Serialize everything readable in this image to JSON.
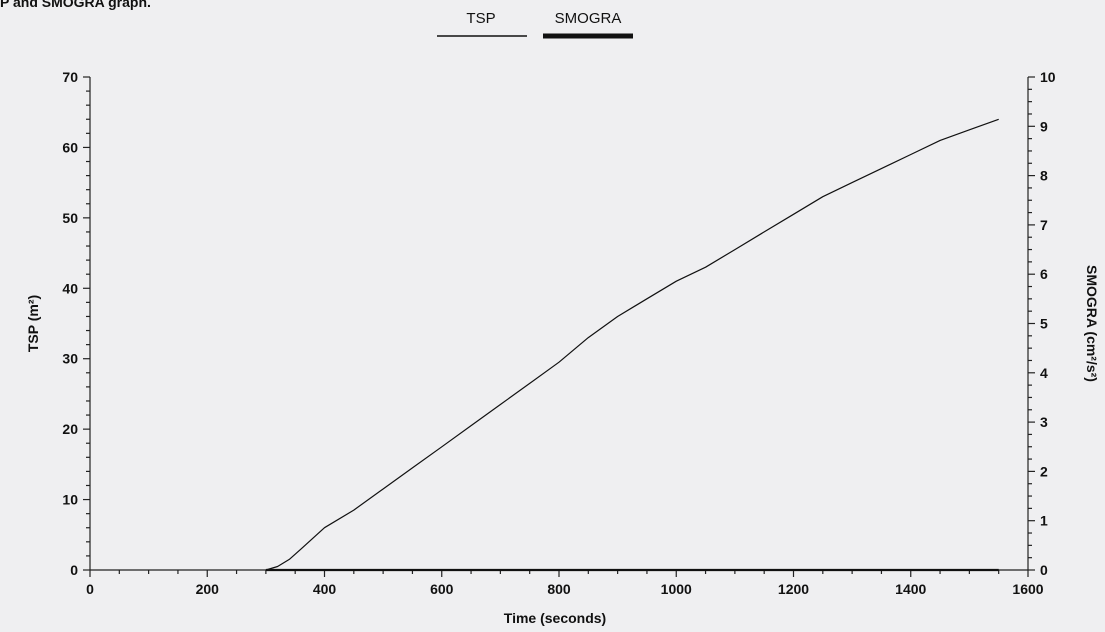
{
  "caption": "P and SMOGRA graph.",
  "chart_data": {
    "type": "line",
    "xlabel": "Time (seconds)",
    "ylabel_left": "TSP (m²)",
    "ylabel_right": "SMOGRA (cm²/s²)",
    "xlim": [
      0,
      1600
    ],
    "ylim_left": [
      0,
      70
    ],
    "ylim_right": [
      0,
      10
    ],
    "x_ticks": [
      0,
      200,
      400,
      600,
      800,
      1000,
      1200,
      1400,
      1600
    ],
    "y_ticks_left": [
      0,
      10,
      20,
      30,
      40,
      50,
      60,
      70
    ],
    "y_ticks_right": [
      0,
      1,
      2,
      3,
      4,
      5,
      6,
      7,
      8,
      9,
      10
    ],
    "legend": {
      "position": "top-center",
      "entries": [
        "TSP",
        "SMOGRA"
      ]
    },
    "grid": false,
    "series": [
      {
        "name": "TSP",
        "axis": "left",
        "x": [
          300,
          320,
          340,
          360,
          380,
          400,
          450,
          500,
          550,
          600,
          650,
          700,
          750,
          800,
          850,
          900,
          950,
          1000,
          1050,
          1100,
          1150,
          1200,
          1250,
          1300,
          1350,
          1400,
          1450,
          1500,
          1550
        ],
        "y": [
          0,
          0.5,
          1.5,
          3.0,
          4.5,
          6.0,
          8.5,
          11.5,
          14.5,
          17.5,
          20.5,
          23.5,
          26.5,
          29.5,
          33.0,
          36.0,
          38.5,
          41.0,
          43.0,
          45.5,
          48.0,
          50.5,
          53.0,
          55.0,
          57.0,
          59.0,
          61.0,
          62.5,
          64.0
        ]
      },
      {
        "name": "SMOGRA",
        "axis": "right",
        "x": [
          300,
          1550
        ],
        "y": [
          0,
          0
        ]
      }
    ]
  }
}
